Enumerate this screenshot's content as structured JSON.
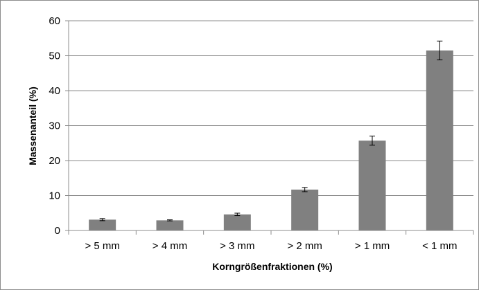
{
  "chart_data": {
    "type": "bar",
    "title": "",
    "xlabel": "Korngrößenfraktionen (%)",
    "ylabel": "Massenanteil (%)",
    "categories": [
      "> 5 mm",
      "> 4 mm",
      "> 3 mm",
      "> 2 mm",
      "> 1 mm",
      "< 1 mm"
    ],
    "values": [
      3.1,
      2.9,
      4.6,
      11.7,
      25.7,
      51.5
    ],
    "error": [
      0.3,
      0.15,
      0.35,
      0.6,
      1.3,
      2.7
    ],
    "ylim": [
      0,
      60
    ],
    "yticks": [
      "0",
      "10",
      "20",
      "30",
      "40",
      "50",
      "60"
    ],
    "grid": true,
    "legend": "none",
    "colors": {
      "bar": "#808080",
      "grid": "#8c8c8c",
      "axis": "#8c8c8c",
      "error": "#000000"
    }
  }
}
